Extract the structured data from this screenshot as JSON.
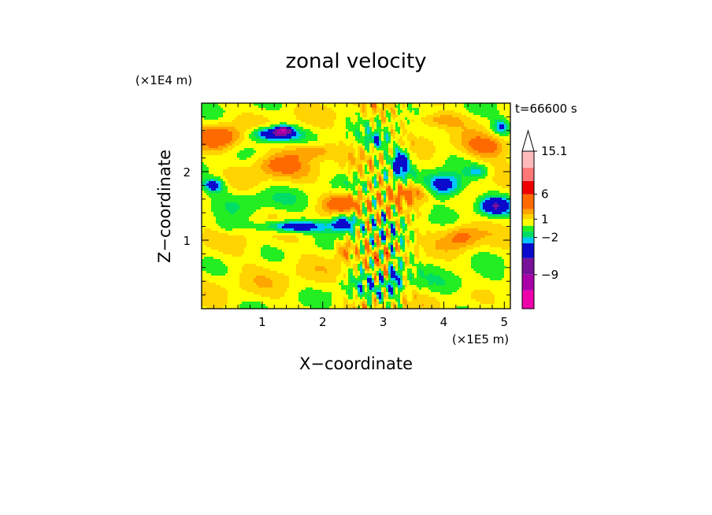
{
  "chart_data": {
    "type": "heatmap",
    "title": "zonal velocity",
    "xlabel": "X−coordinate",
    "ylabel": "Z−coordinate",
    "x_unit": "(×1E5 m)",
    "y_unit": "(×1E4 m)",
    "time_label": "t=66600 s",
    "xlim": [
      0,
      5.1
    ],
    "ylim": [
      0,
      3.0
    ],
    "x_ticks": [
      1,
      2,
      3,
      4,
      5
    ],
    "y_ticks": [
      1,
      2
    ],
    "x_minor_step": 0.2,
    "y_minor_step": 0.2,
    "colorbar": {
      "labels": [
        {
          "text": "15.1",
          "value": 15.1
        },
        {
          "text": "6",
          "value": 6
        },
        {
          "text": "1",
          "value": 1
        },
        {
          "text": "−2",
          "value": -2
        },
        {
          "text": "−9",
          "value": -9
        }
      ],
      "levels": [
        {
          "min": -15,
          "max": -12,
          "color": "#ee00aa"
        },
        {
          "min": -12,
          "max": -9,
          "color": "#aa00aa"
        },
        {
          "min": -9,
          "max": -6,
          "color": "#771199"
        },
        {
          "min": -6,
          "max": -3,
          "color": "#0a0acc"
        },
        {
          "min": -3,
          "max": -2,
          "color": "#00c8ff"
        },
        {
          "min": -2,
          "max": -1,
          "color": "#00dd66"
        },
        {
          "min": -1,
          "max": 0,
          "color": "#22ee22"
        },
        {
          "min": 0,
          "max": 1,
          "color": "#ffff00"
        },
        {
          "min": 1,
          "max": 2,
          "color": "#ffd400"
        },
        {
          "min": 2,
          "max": 3,
          "color": "#ffa500"
        },
        {
          "min": 3,
          "max": 6,
          "color": "#ff6a00"
        },
        {
          "min": 6,
          "max": 9,
          "color": "#ee0000"
        },
        {
          "min": 9,
          "max": 12,
          "color": "#ff7777"
        },
        {
          "min": 12,
          "max": 15.1,
          "color": "#ffbbbb"
        }
      ],
      "overflow_color": "#ffffff"
    },
    "features": [
      {
        "x": 1.2,
        "z": 2.55,
        "u": -7,
        "sx": 0.25,
        "sz": 0.07
      },
      {
        "x": 1.35,
        "z": 2.6,
        "u": -9,
        "sx": 0.08,
        "sz": 0.04
      },
      {
        "x": 0.2,
        "z": 1.8,
        "u": -5,
        "sx": 0.12,
        "sz": 0.07
      },
      {
        "x": 1.55,
        "z": 1.2,
        "u": -6,
        "sx": 0.35,
        "sz": 0.06
      },
      {
        "x": 2.35,
        "z": 1.25,
        "u": -6,
        "sx": 0.15,
        "sz": 0.09
      },
      {
        "x": 3.3,
        "z": 2.15,
        "u": -5,
        "sx": 0.1,
        "sz": 0.14
      },
      {
        "x": 4.0,
        "z": 1.8,
        "u": -6,
        "sx": 0.22,
        "sz": 0.12
      },
      {
        "x": 4.85,
        "z": 1.5,
        "u": -6,
        "sx": 0.18,
        "sz": 0.09
      },
      {
        "x": 3.2,
        "z": 0.5,
        "u": -4,
        "sx": 0.06,
        "sz": 0.18
      },
      {
        "x": 4.95,
        "z": 2.65,
        "u": -4,
        "sx": 0.1,
        "sz": 0.08
      },
      {
        "x": 0.3,
        "z": 2.5,
        "u": 4,
        "sx": 0.25,
        "sz": 0.12
      },
      {
        "x": 1.25,
        "z": 2.1,
        "u": 3,
        "sx": 0.3,
        "sz": 0.12
      },
      {
        "x": 1.8,
        "z": 2.3,
        "u": 3,
        "sx": 0.25,
        "sz": 0.08
      },
      {
        "x": 2.35,
        "z": 1.55,
        "u": 4,
        "sx": 0.22,
        "sz": 0.1
      },
      {
        "x": 2.35,
        "z": 0.85,
        "u": 3,
        "sx": 0.1,
        "sz": 0.1
      },
      {
        "x": 3.5,
        "z": 1.7,
        "u": 3,
        "sx": 0.25,
        "sz": 0.1
      },
      {
        "x": 4.3,
        "z": 1.05,
        "u": 3,
        "sx": 0.2,
        "sz": 0.12
      },
      {
        "x": 4.7,
        "z": 2.35,
        "u": 3,
        "sx": 0.3,
        "sz": 0.12
      },
      {
        "x": 3.9,
        "z": 2.75,
        "u": 2.5,
        "sx": 0.3,
        "sz": 0.08
      },
      {
        "x": 0.9,
        "z": 1.6,
        "u": -1.2,
        "sx": 0.5,
        "sz": 0.12
      },
      {
        "x": 2.7,
        "z": 0.35,
        "u": -1.2,
        "sx": 0.4,
        "sz": 0.15
      },
      {
        "x": 4.3,
        "z": 0.35,
        "u": -1.2,
        "sx": 0.5,
        "sz": 0.12
      },
      {
        "x": 1.1,
        "z": 0.6,
        "u": 0.4,
        "sx": 0.9,
        "sz": 0.35
      },
      {
        "x": 0.4,
        "z": 1.2,
        "u": -1.5,
        "sx": 0.15,
        "sz": 0.1
      },
      {
        "x": 4.55,
        "z": 2.0,
        "u": -2.5,
        "sx": 0.12,
        "sz": 0.06
      },
      {
        "x": 2.9,
        "z": 2.45,
        "u": -2.5,
        "sx": 0.15,
        "sz": 0.08
      }
    ]
  }
}
